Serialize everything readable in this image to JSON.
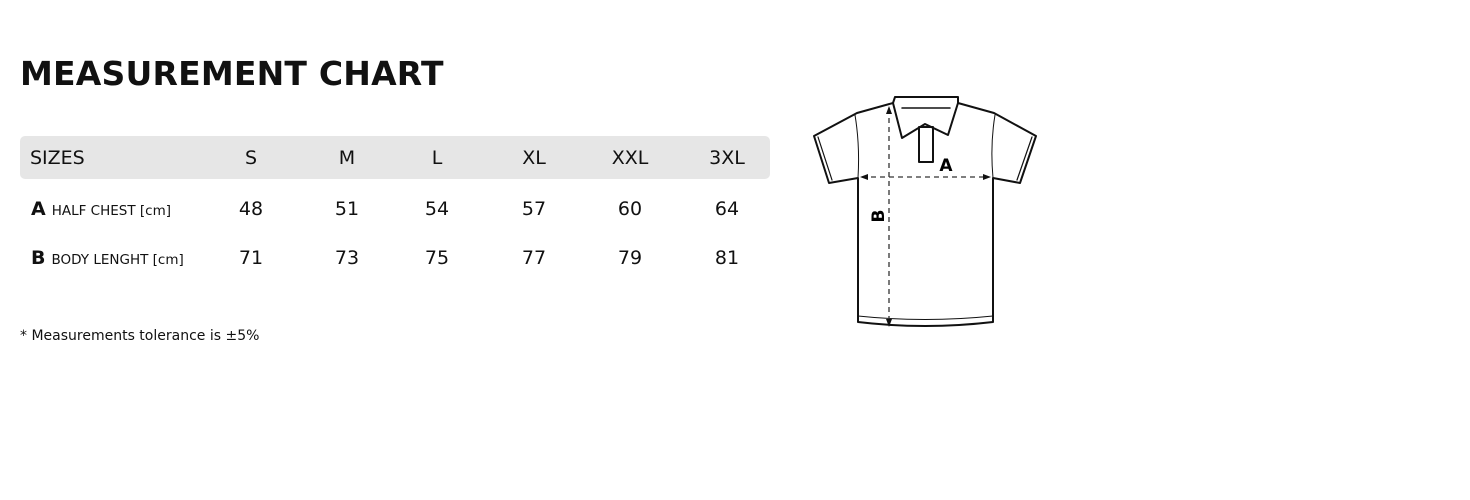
{
  "title": "MEASUREMENT CHART",
  "table": {
    "header": {
      "label": "SIZES",
      "sizes": [
        "S",
        "M",
        "L",
        "XL",
        "XXL",
        "3XL"
      ]
    },
    "rows": [
      {
        "letter": "A",
        "name": "HALF CHEST [cm]",
        "values": [
          "48",
          "51",
          "54",
          "57",
          "60",
          "64"
        ]
      },
      {
        "letter": "B",
        "name": "BODY LENGHT [cm]",
        "values": [
          "71",
          "73",
          "75",
          "77",
          "79",
          "81"
        ]
      }
    ]
  },
  "note": "* Measurements tolerance is ±5%",
  "diagram": {
    "label_a": "A",
    "label_b": "B"
  }
}
